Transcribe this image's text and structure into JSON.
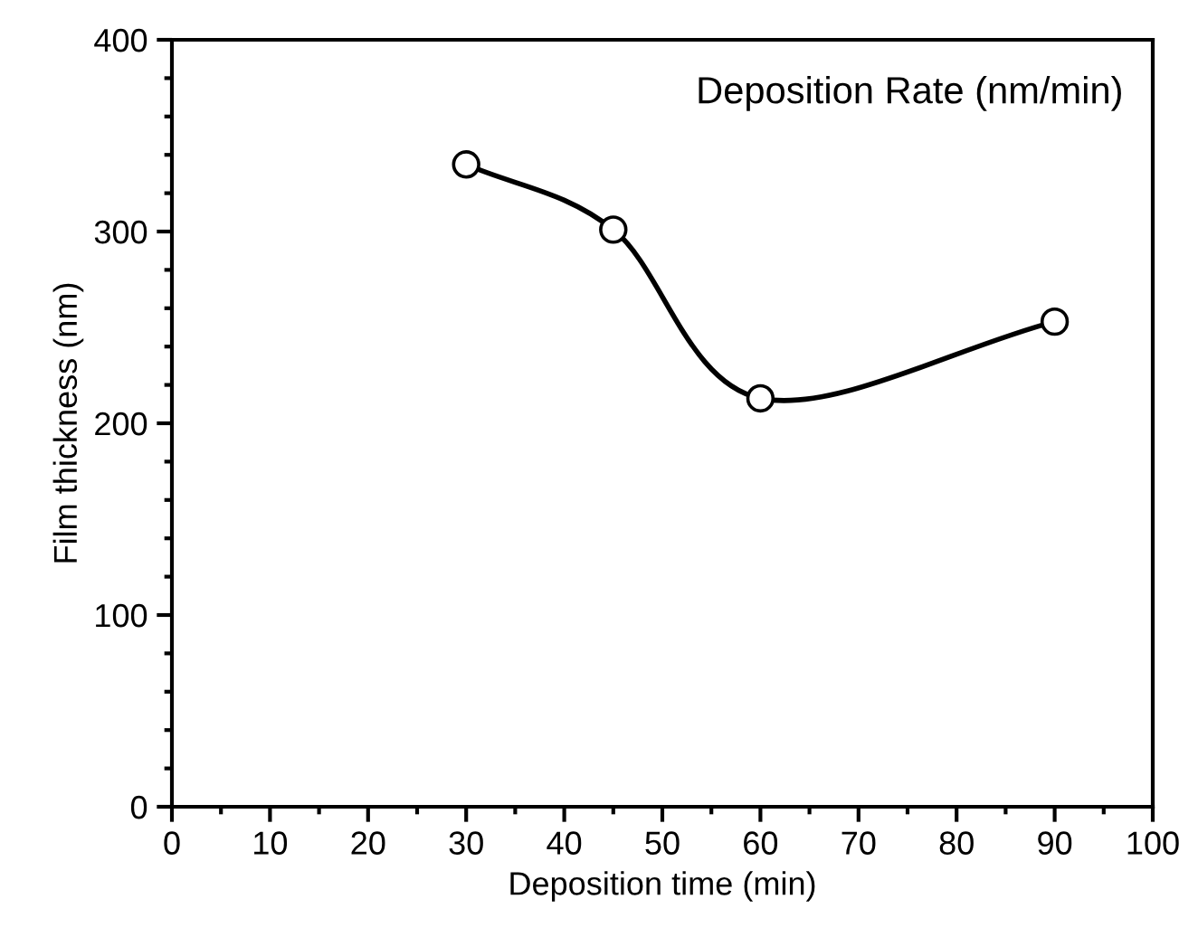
{
  "chart_data": {
    "type": "line",
    "xlabel": "Deposition time (min)",
    "ylabel": "Film thickness (nm)",
    "annotations": [
      "Deposition Rate (nm/min)"
    ],
    "x": [
      30,
      45,
      60,
      90
    ],
    "series": [
      {
        "color": "#000000",
        "values": [
          335,
          301,
          213,
          253
        ]
      }
    ],
    "xlim": [
      0,
      100
    ],
    "xticks": [
      0,
      10,
      20,
      30,
      40,
      50,
      60,
      70,
      80,
      90,
      100
    ],
    "ylim": [
      0,
      400
    ],
    "yticks": [
      0,
      100,
      200,
      300,
      400
    ],
    "marker": "circle",
    "line_style": "solid",
    "grid": false,
    "legend": false
  }
}
